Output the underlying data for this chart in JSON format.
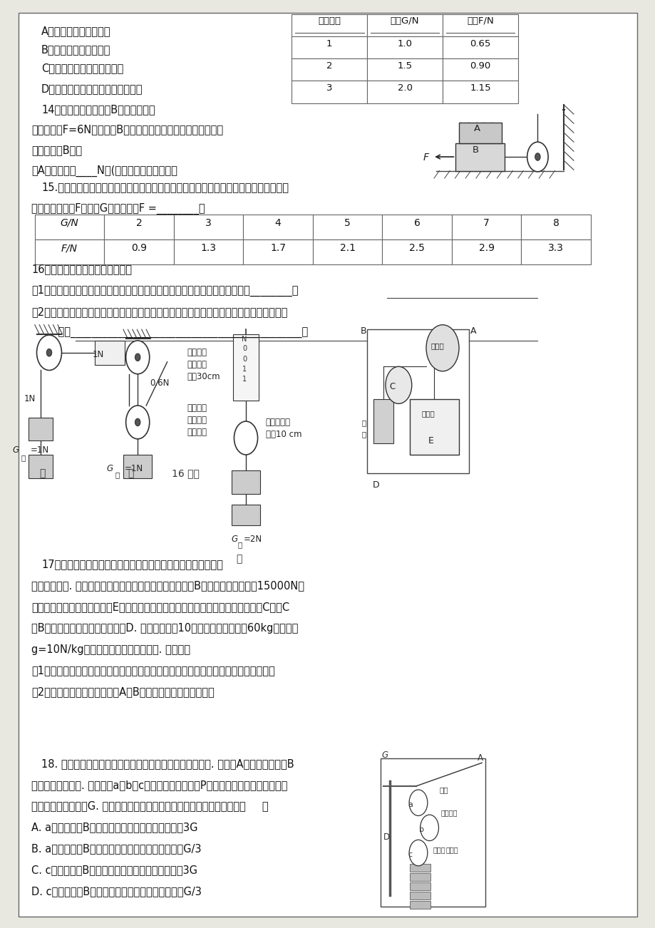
{
  "bg_color": "#e8e8e0",
  "page_bg": "#ffffff",
  "border_color": "#666666",
  "text_color": "#111111",
  "opts": [
    "A．与同学分析可能原因",
    "B．实验失败，停止实验",
    "C．改进实验条件，重新实验",
    "D．查阅资料，了解结论的适用条件"
  ],
  "table1_headers": [
    "实验次数",
    "物重G/N",
    "拉力F/N"
  ],
  "table1_data": [
    [
      "1",
      "1.0",
      "0.65"
    ],
    [
      "2",
      "1.5",
      "0.90"
    ],
    [
      "3",
      "2.0",
      "1.15"
    ]
  ],
  "table2_headers": [
    "G/N",
    "2",
    "3",
    "4",
    "5",
    "6",
    "7",
    "8"
  ],
  "table2_row": [
    "F/N",
    "0.9",
    "1.3",
    "1.7",
    "2.1",
    "2.5",
    "2.9",
    "3.3"
  ],
  "q14_text": [
    "14．如图所示，对物体B施加一个水平",
    "向左的拉力F=6N，使物体B在光滑的水平面上向左做匀速直线运",
    "动，则物体B对物",
    "体A的摩擦力为____N；(不计绳重及滑轮摩擦）"
  ],
  "q15_text": [
    "15.小明同学利用滑轮组及相关器材进行实验，记录的实验数据如下表所示。请根据表中",
    "数据归纳出拉力F与重力G的关系式：F =________。"
  ],
  "q16_text": [
    "16．同学们共同研究滑轮的特点：",
    "（1）他们研究定滑轮特点时，做的实验如甲图所示，据此可证明：使用定滑轮________。",
    "（2）他们研究动滑轮特点时，用动滑轮匀速竖直提升重物，如乙图所示。据此可知，使用动",
    "    滑轮____________________________________________。"
  ],
  "q17_text": [
    "17．如图是一种电梯结构的示意图，电梯厢在电梯井中沿，竖直",
    "通道上下运行. 钢链的两端分别固定在电梯井顶部的一点和B点，刚时钢链绕过重15000N电",
    "梯厢下的滑轮而托起整个厢体E，又跨过电梯井顶部由电动机驱动并带有齿轮的轮轴C，在C",
    "和B之间吊起与动滑轮相连的配重D. 电梯载重量为10人（每个人的质量按60kg计算，取",
    "g=10N/kg，忽略摩擦及钢链的质量）. 请回答：",
    "（1）配重的功能是什么？在已知电梯厢重和载重量的情况下，配重的质量最好是多大？",
    "（2）当电梯满载匀速上升时，A、B两点受到的拉力各是多大？"
  ],
  "q18_text": [
    "18. 电气化铁路的输电线常用如图所示的方式悬挂在钢缆上. 钢缆的A端固定在电杆上B",
    "端连接在滑轮组上. 滑轮组由a、b、c三个滑轮构成，配重P由多个混凝土圆盘悬挂在一起",
    "组成，配重的总重为G. 若不计摩擦和滑轮的重量，则以下说法中正确的是（     ）",
    "A. a为动滑轮，B端钢缆受到滑轮组的拉力大小约为3G",
    "B. a为动滑轮，B端钢缆受到滑轮组的拉力大小约为G/3",
    "C. c为动滑轮，B端钢缆受到滑轮组的拉力大小约为3G",
    "D. c为动滑轮，B端钢缆受到滑轮组的拉力大小约为G/3"
  ]
}
